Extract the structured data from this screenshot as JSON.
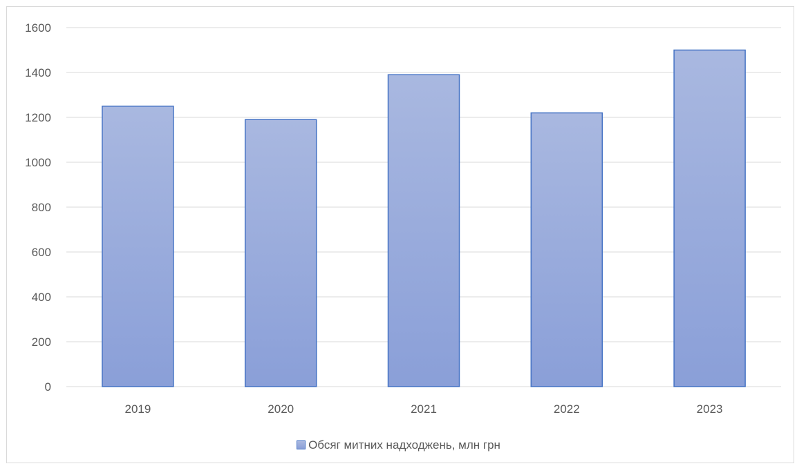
{
  "chart_data": {
    "type": "bar",
    "categories": [
      "2019",
      "2020",
      "2021",
      "2022",
      "2023"
    ],
    "series": [
      {
        "name": "Обсяг митних надходжень, млн грн",
        "values": [
          1250,
          1190,
          1390,
          1220,
          1500
        ]
      }
    ],
    "title": "",
    "xlabel": "",
    "ylabel": "",
    "ylim": [
      0,
      1600
    ],
    "yticks": [
      0,
      200,
      400,
      600,
      800,
      1000,
      1200,
      1400,
      1600
    ],
    "grid": true,
    "legend": "bottom",
    "colors": {
      "bar_fill_top": "#a9b8e0",
      "bar_fill_bottom": "#8a9fd8",
      "bar_stroke": "#4472c4",
      "grid": "#d9d9d9",
      "text": "#595959"
    }
  }
}
